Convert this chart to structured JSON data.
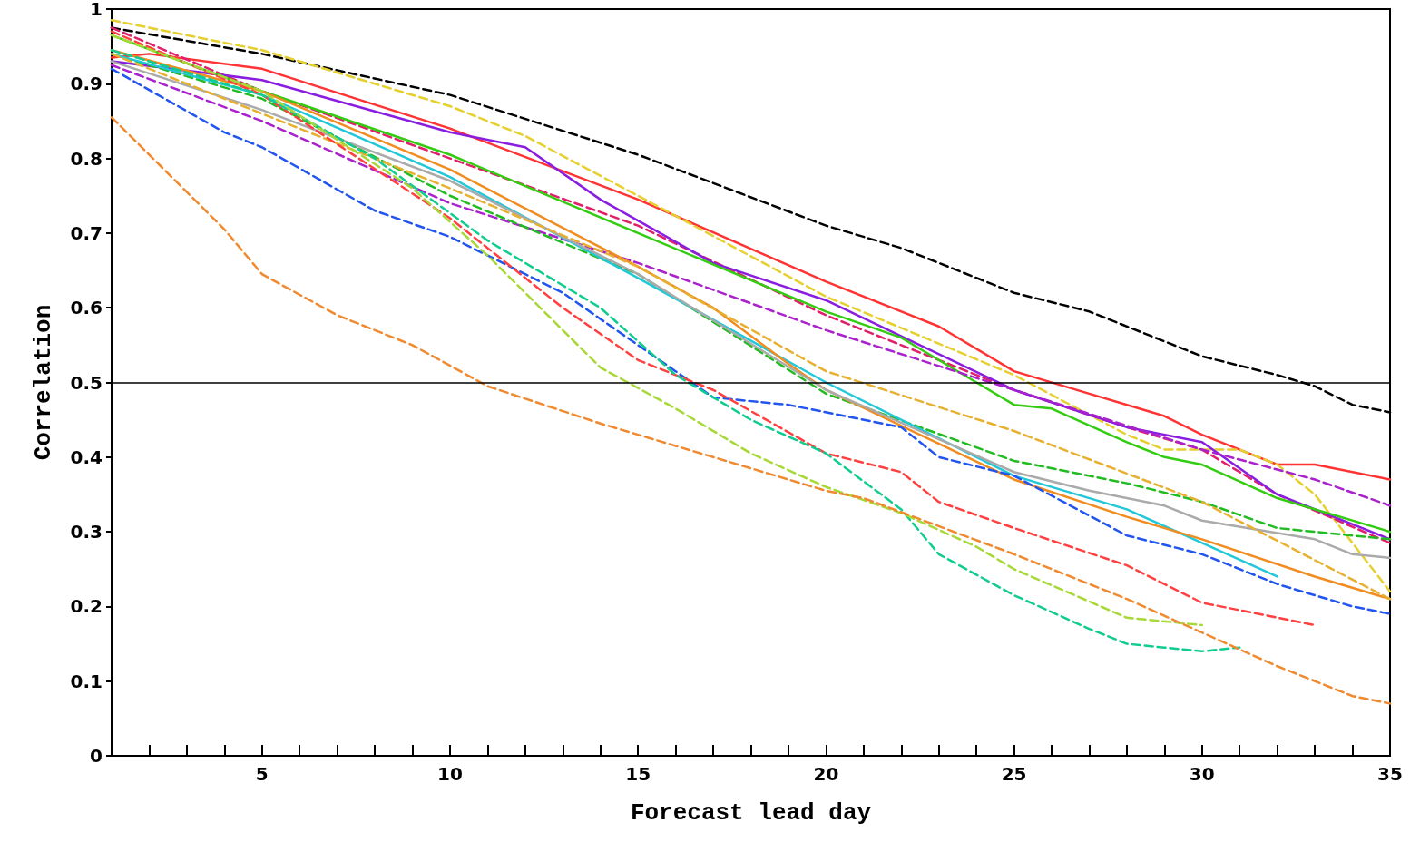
{
  "chart_data": {
    "type": "line",
    "xlabel": "Forecast lead day",
    "ylabel": "Correlation",
    "xlim": [
      1,
      35
    ],
    "ylim": [
      0,
      1
    ],
    "xticks": [
      {
        "value": 1,
        "label": null
      },
      {
        "value": 2,
        "label": null
      },
      {
        "value": 3,
        "label": null
      },
      {
        "value": 4,
        "label": null
      },
      5,
      {
        "value": 6,
        "label": null
      },
      {
        "value": 7,
        "label": null
      },
      {
        "value": 8,
        "label": null
      },
      {
        "value": 9,
        "label": null
      },
      10,
      {
        "value": 11,
        "label": null
      },
      {
        "value": 12,
        "label": null
      },
      {
        "value": 13,
        "label": null
      },
      {
        "value": 14,
        "label": null
      },
      15,
      {
        "value": 16,
        "label": null
      },
      {
        "value": 17,
        "label": null
      },
      {
        "value": 18,
        "label": null
      },
      {
        "value": 19,
        "label": null
      },
      20,
      {
        "value": 21,
        "label": null
      },
      {
        "value": 22,
        "label": null
      },
      {
        "value": 23,
        "label": null
      },
      {
        "value": 24,
        "label": null
      },
      25,
      {
        "value": 26,
        "label": null
      },
      {
        "value": 27,
        "label": null
      },
      {
        "value": 28,
        "label": null
      },
      {
        "value": 29,
        "label": null
      },
      30,
      {
        "value": 31,
        "label": null
      },
      {
        "value": 32,
        "label": null
      },
      {
        "value": 33,
        "label": null
      },
      {
        "value": 34,
        "label": null
      },
      35
    ],
    "yticks": [
      0,
      0.1,
      0.2,
      0.3,
      0.4,
      0.5,
      0.6,
      0.7,
      0.8,
      0.9,
      1
    ],
    "grid": false,
    "marker": "none",
    "ref_lines": [
      {
        "axis": "y",
        "value": 0.5,
        "color": "#000000",
        "line_style": "solid"
      }
    ],
    "series": [
      {
        "color": "#000000",
        "line_style": "dashed",
        "x": [
          1,
          5,
          10,
          15,
          20,
          22,
          23,
          25,
          27,
          30,
          32,
          33,
          34,
          35
        ],
        "values": [
          0.975,
          0.94,
          0.885,
          0.805,
          0.71,
          0.68,
          0.66,
          0.62,
          0.595,
          0.535,
          0.51,
          0.495,
          0.47,
          0.46
        ]
      },
      {
        "color": "#ff3333",
        "line_style": "solid",
        "x": [
          1,
          2,
          5,
          10,
          15,
          20,
          23,
          25,
          27,
          29,
          30,
          32,
          33,
          35
        ],
        "values": [
          0.935,
          0.94,
          0.92,
          0.84,
          0.745,
          0.635,
          0.575,
          0.515,
          0.485,
          0.455,
          0.43,
          0.39,
          0.39,
          0.37
        ]
      },
      {
        "color": "#e6d030",
        "line_style": "dashed",
        "x": [
          1,
          5,
          10,
          12,
          15,
          20,
          25,
          28,
          29,
          31,
          32,
          33,
          35
        ],
        "values": [
          0.985,
          0.945,
          0.87,
          0.83,
          0.75,
          0.615,
          0.51,
          0.43,
          0.41,
          0.41,
          0.39,
          0.35,
          0.22
        ]
      },
      {
        "color": "#e0206a",
        "line_style": "dashed",
        "x": [
          1,
          5,
          10,
          15,
          20,
          25,
          28,
          30,
          32,
          35
        ],
        "values": [
          0.975,
          0.89,
          0.8,
          0.71,
          0.59,
          0.49,
          0.44,
          0.41,
          0.35,
          0.285
        ]
      },
      {
        "color": "#8a1ee0",
        "line_style": "solid",
        "x": [
          1,
          5,
          10,
          12,
          14,
          17,
          20,
          25,
          28,
          30,
          32,
          35
        ],
        "values": [
          0.93,
          0.905,
          0.835,
          0.815,
          0.745,
          0.66,
          0.61,
          0.49,
          0.44,
          0.42,
          0.35,
          0.29
        ]
      },
      {
        "color": "#33cc11",
        "line_style": "solid",
        "x": [
          1,
          5,
          10,
          15,
          20,
          22,
          24,
          25,
          26,
          28,
          29,
          30,
          32,
          35
        ],
        "values": [
          0.965,
          0.89,
          0.805,
          0.7,
          0.595,
          0.56,
          0.5,
          0.47,
          0.465,
          0.42,
          0.4,
          0.39,
          0.345,
          0.3
        ]
      },
      {
        "color": "#aa22cc",
        "line_style": "dashed",
        "x": [
          1,
          5,
          10,
          15,
          20,
          25,
          30,
          33,
          35
        ],
        "values": [
          0.925,
          0.85,
          0.74,
          0.66,
          0.57,
          0.49,
          0.41,
          0.37,
          0.335
        ]
      },
      {
        "color": "#22bb22",
        "line_style": "dashed",
        "x": [
          1,
          5,
          10,
          15,
          20,
          25,
          28,
          30,
          32,
          35
        ],
        "values": [
          0.94,
          0.88,
          0.75,
          0.645,
          0.485,
          0.395,
          0.365,
          0.34,
          0.305,
          0.29
        ]
      },
      {
        "color": "#22c8d8",
        "line_style": "solid",
        "x": [
          1,
          5,
          10,
          15,
          20,
          25,
          28,
          30,
          32
        ],
        "values": [
          0.94,
          0.885,
          0.775,
          0.64,
          0.5,
          0.375,
          0.33,
          0.285,
          0.24
        ]
      },
      {
        "color": "#f08c20",
        "line_style": "solid",
        "x": [
          1,
          5,
          10,
          15,
          17,
          19,
          20,
          25,
          28,
          30,
          33,
          35
        ],
        "values": [
          0.945,
          0.89,
          0.785,
          0.655,
          0.6,
          0.525,
          0.49,
          0.37,
          0.32,
          0.29,
          0.24,
          0.21
        ]
      },
      {
        "color": "#aaaaaa",
        "line_style": "solid",
        "x": [
          1,
          5,
          10,
          15,
          20,
          25,
          27,
          29,
          30,
          33,
          34,
          35
        ],
        "values": [
          0.93,
          0.865,
          0.77,
          0.645,
          0.49,
          0.38,
          0.355,
          0.335,
          0.315,
          0.29,
          0.27,
          0.265
        ]
      },
      {
        "color": "#e8b030",
        "line_style": "dashed",
        "x": [
          1,
          5,
          10,
          15,
          20,
          25,
          30,
          35
        ],
        "values": [
          0.94,
          0.86,
          0.76,
          0.655,
          0.515,
          0.435,
          0.34,
          0.21
        ]
      },
      {
        "color": "#2255ee",
        "line_style": "dashed",
        "x": [
          1,
          4,
          5,
          8,
          10,
          13,
          16,
          17,
          19,
          22,
          23,
          25,
          28,
          30,
          32,
          34,
          35
        ],
        "values": [
          0.92,
          0.835,
          0.815,
          0.73,
          0.695,
          0.62,
          0.515,
          0.48,
          0.47,
          0.44,
          0.4,
          0.375,
          0.295,
          0.27,
          0.23,
          0.2,
          0.19
        ]
      },
      {
        "color": "#ff4040",
        "line_style": "dashed",
        "x": [
          1,
          5,
          10,
          13,
          15,
          17,
          20,
          22,
          23,
          25,
          28,
          30,
          31,
          33
        ],
        "values": [
          0.97,
          0.885,
          0.72,
          0.6,
          0.53,
          0.49,
          0.405,
          0.38,
          0.34,
          0.305,
          0.255,
          0.205,
          0.195,
          0.175
        ]
      },
      {
        "color": "#10cc90",
        "line_style": "dashed",
        "x": [
          1,
          5,
          8,
          11,
          14,
          16,
          18,
          20,
          22,
          23,
          25,
          27,
          28,
          29,
          30,
          31
        ],
        "values": [
          0.945,
          0.885,
          0.8,
          0.69,
          0.6,
          0.51,
          0.45,
          0.405,
          0.33,
          0.27,
          0.215,
          0.17,
          0.15,
          0.145,
          0.14,
          0.145
        ]
      },
      {
        "color": "#a8d838",
        "line_style": "dashed",
        "x": [
          1,
          5,
          9,
          11,
          14,
          16,
          18,
          20,
          22,
          24,
          25,
          28,
          30
        ],
        "values": [
          0.965,
          0.89,
          0.76,
          0.67,
          0.52,
          0.465,
          0.405,
          0.36,
          0.325,
          0.28,
          0.25,
          0.185,
          0.175
        ]
      },
      {
        "color": "#f08a30",
        "line_style": "dashed",
        "x": [
          1,
          3,
          4,
          5,
          7,
          9,
          11,
          14,
          15,
          20,
          21,
          25,
          28,
          30,
          32,
          34,
          35
        ],
        "values": [
          0.855,
          0.755,
          0.705,
          0.645,
          0.59,
          0.55,
          0.495,
          0.445,
          0.43,
          0.355,
          0.345,
          0.27,
          0.21,
          0.165,
          0.12,
          0.08,
          0.07
        ]
      }
    ]
  }
}
